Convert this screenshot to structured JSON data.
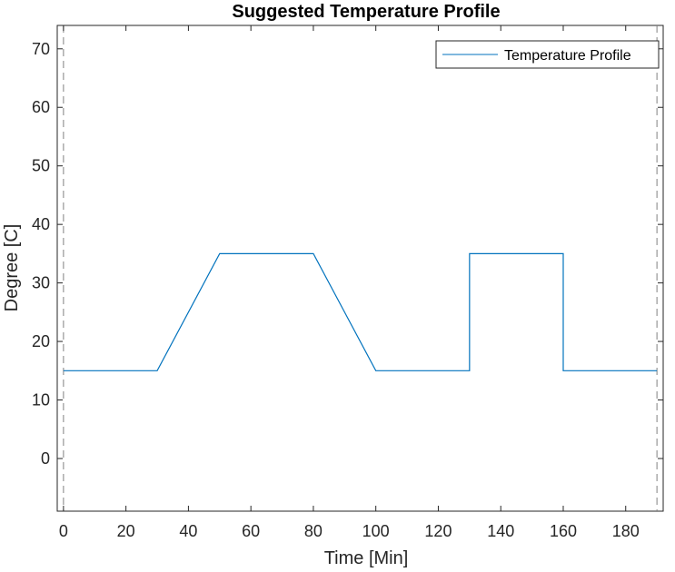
{
  "chart_data": {
    "type": "line",
    "title": "Suggested Temperature Profile",
    "xlabel": "Time [Min]",
    "ylabel": "Degree [C]",
    "xlim": [
      -2,
      192
    ],
    "ylim": [
      -9,
      74
    ],
    "xticks": [
      0,
      20,
      40,
      60,
      80,
      100,
      120,
      140,
      160,
      180
    ],
    "yticks": [
      0,
      10,
      20,
      30,
      40,
      50,
      60,
      70
    ],
    "grid": false,
    "legend_position": "top-right",
    "series": [
      {
        "name": "Temperature Profile",
        "color": "#0072BD",
        "x": [
          0,
          30,
          50,
          80,
          100,
          130,
          130,
          160,
          160,
          190
        ],
        "y": [
          15,
          15,
          35,
          35,
          15,
          15,
          35,
          35,
          15,
          15
        ]
      }
    ],
    "vertical_lines": [
      {
        "x": 0,
        "style": "dashed",
        "color": "#808080"
      },
      {
        "x": 190,
        "style": "dashed",
        "color": "#808080"
      }
    ]
  }
}
